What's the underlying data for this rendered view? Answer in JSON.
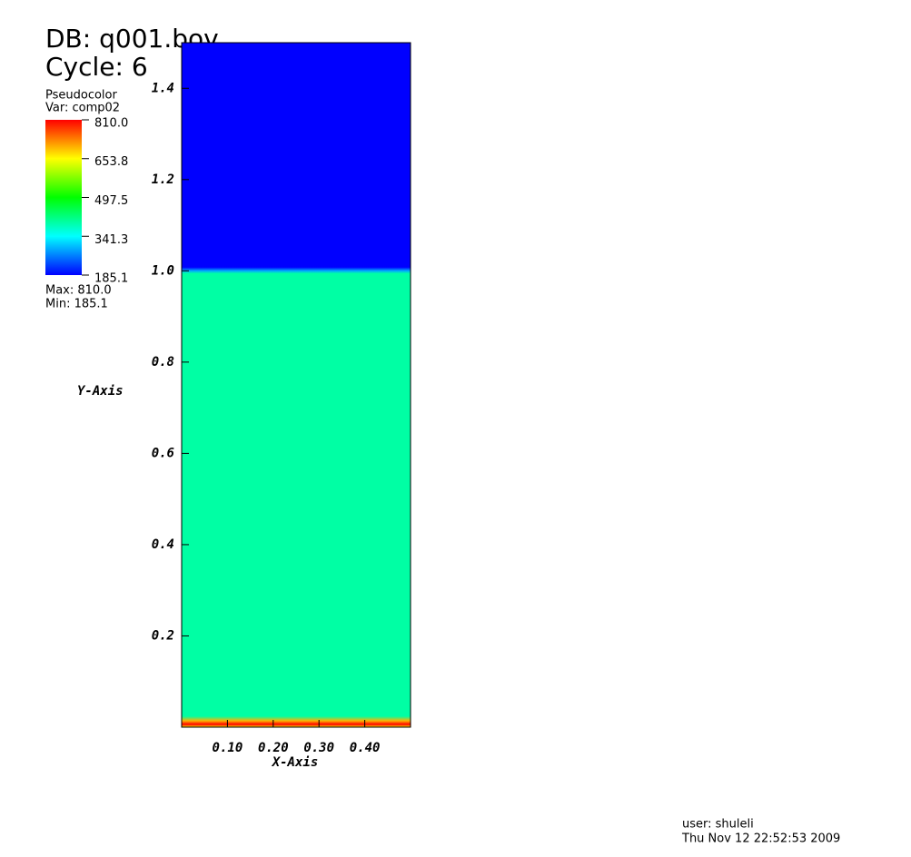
{
  "chart_data": {
    "type": "pseudocolor",
    "title": "DB: q001.bov",
    "subtitle": "Cycle: 6",
    "legend_title": "Pseudocolor",
    "variable": "Var: comp02",
    "max_label": "Max:  810.0",
    "min_label": "Min:  185.1",
    "xlabel": "X-Axis",
    "ylabel": "Y-Axis",
    "user": "user: shuleli",
    "date": "Thu Nov 12 22:52:53 2009",
    "colormap": [
      "#0000ff",
      "#00ffff",
      "#00ff00",
      "#ffff00",
      "#ff0000"
    ],
    "clim": [
      185.1,
      810.0
    ],
    "cticks": [
      {
        "value": 810.0,
        "label": "810.0"
      },
      {
        "value": 653.8,
        "label": "653.8"
      },
      {
        "value": 497.5,
        "label": "497.5"
      },
      {
        "value": 341.3,
        "label": "341.3"
      },
      {
        "value": 185.1,
        "label": "185.1"
      }
    ],
    "profile": {
      "y": [
        0,
        0.006,
        0.014,
        0.024,
        0.994,
        1.0,
        1.008,
        1.5
      ],
      "values": [
        650,
        810,
        700,
        397,
        397,
        290,
        185.1,
        185.1
      ]
    },
    "xlim": [
      0,
      0.5
    ],
    "ylim": [
      0,
      1.5
    ],
    "xticks": [
      {
        "value": 0.1,
        "label": "0.10"
      },
      {
        "value": 0.2,
        "label": "0.20"
      },
      {
        "value": 0.3,
        "label": "0.30"
      },
      {
        "value": 0.4,
        "label": "0.40"
      }
    ],
    "yticks": [
      0.2,
      0.4,
      0.6,
      0.8,
      {
        "value": 1.0,
        "label": "1.0"
      },
      1.2,
      1.4
    ]
  }
}
